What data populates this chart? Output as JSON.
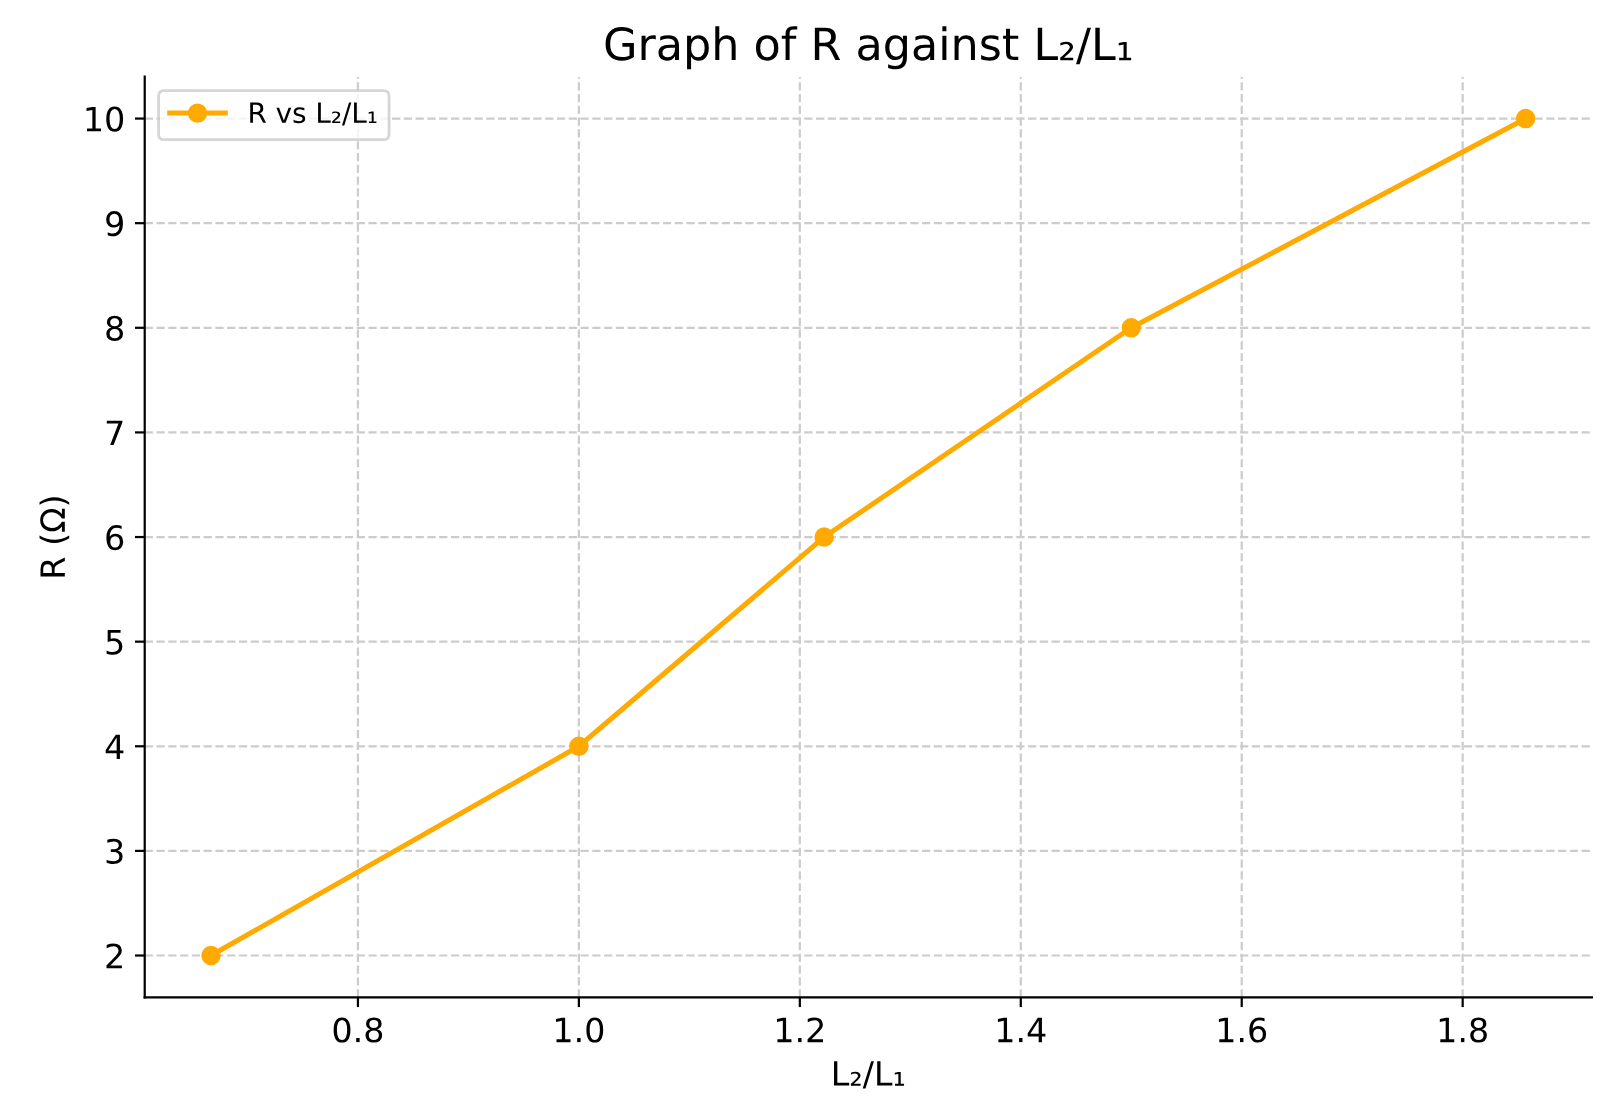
{
  "chart_data": {
    "type": "line",
    "title": "Graph of R against L₂/L₁",
    "xlabel": "L₂/L₁",
    "ylabel": "R (Ω)",
    "x": [
      0.667,
      1.0,
      1.222,
      1.5,
      1.857
    ],
    "series": [
      {
        "name": "R vs L₂/L₁",
        "color": "#ffaa00",
        "values": [
          2,
          4,
          6,
          8,
          10
        ]
      }
    ],
    "xlim": [
      0.607,
      1.917
    ],
    "ylim": [
      1.6,
      10.4
    ],
    "xticks": [
      {
        "value": 0.8,
        "label": "0.8"
      },
      {
        "value": 1.0,
        "label": "1.0"
      },
      {
        "value": 1.2,
        "label": "1.2"
      },
      {
        "value": 1.4,
        "label": "1.4"
      },
      {
        "value": 1.6,
        "label": "1.6"
      },
      {
        "value": 1.8,
        "label": "1.8"
      }
    ],
    "yticks": [
      2,
      3,
      4,
      5,
      6,
      7,
      8,
      9,
      10
    ],
    "grid": true,
    "legend": "top left",
    "marker": "circle",
    "line_style": "solid"
  }
}
